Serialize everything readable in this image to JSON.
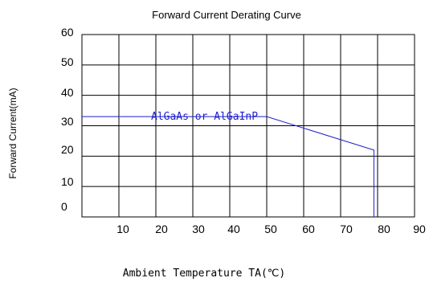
{
  "chart_data": {
    "type": "line",
    "title": "Forward Current Derating Curve",
    "xlabel": "Ambient Temperature TA(℃)",
    "ylabel": "Forward Current(mA)",
    "xlim": [
      0,
      90
    ],
    "ylim": [
      0,
      60
    ],
    "x_ticks": [
      "10",
      "20",
      "30",
      "40",
      "50",
      "60",
      "70",
      "80",
      "90"
    ],
    "y_ticks": [
      "60",
      "50",
      "40",
      "30",
      "20",
      "10",
      "0"
    ],
    "grid": true,
    "series": [
      {
        "name": "AlGaAs  or  AlGaInP",
        "color": "#1f1fd0",
        "x": [
          0,
          50,
          79,
          79
        ],
        "y": [
          33,
          33,
          22,
          0
        ]
      }
    ]
  }
}
